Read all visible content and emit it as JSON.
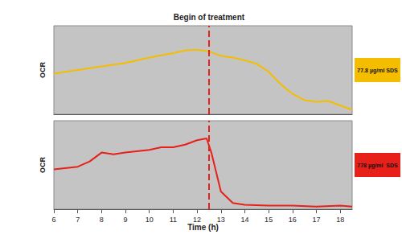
{
  "chart_data": [
    {
      "type": "line",
      "ylabel": "OCR",
      "xlim": [
        6,
        18.5
      ],
      "ylim": [
        0,
        100
      ],
      "tick_labels": false,
      "grid": false,
      "legend": "right",
      "annotations": [
        {
          "text": "Begin of treatment",
          "x": 12.5
        }
      ],
      "series": [
        {
          "name": "77.8 µg/ml SDS",
          "color": "#f5bd00",
          "x": [
            6,
            7,
            8,
            9,
            10,
            11,
            11.5,
            12,
            12.5,
            13,
            13.5,
            14,
            14.5,
            15,
            15.5,
            16,
            16.5,
            17,
            17.5,
            18,
            18.5
          ],
          "values": [
            46,
            50,
            54,
            58,
            64,
            69,
            72,
            73,
            71,
            66,
            64,
            61,
            57,
            48,
            34,
            23,
            16,
            14,
            15,
            10,
            5
          ]
        }
      ]
    },
    {
      "type": "line",
      "ylabel": "OCR",
      "xlabel": "Time (h)",
      "xlim": [
        6,
        18.5
      ],
      "xticks": [
        6,
        7,
        8,
        9,
        10,
        11,
        12,
        13,
        14,
        15,
        16,
        17,
        18
      ],
      "ylim": [
        0,
        100
      ],
      "tick_labels": "x",
      "grid": false,
      "legend": "right",
      "annotations": [
        {
          "x": 12.5
        }
      ],
      "series": [
        {
          "name": "778 µg/ml  SDS",
          "color": "#e8201a",
          "x": [
            6,
            7,
            7.5,
            8,
            8.5,
            9,
            10,
            10.5,
            11,
            11.5,
            12,
            12.4,
            12.6,
            13,
            13.5,
            14,
            15,
            16,
            17,
            18,
            18.5
          ],
          "values": [
            45,
            48,
            54,
            64,
            62,
            64,
            67,
            70,
            70,
            73,
            78,
            80,
            64,
            20,
            7,
            5,
            4,
            4,
            3,
            4,
            3
          ]
        }
      ]
    }
  ]
}
